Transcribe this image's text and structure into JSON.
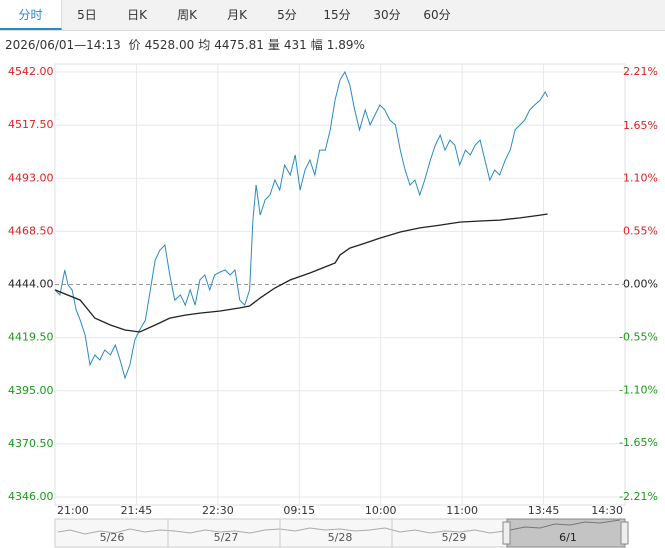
{
  "tabs": [
    "分时",
    "5日",
    "日K",
    "周K",
    "月K",
    "5分",
    "15分",
    "30分",
    "60分"
  ],
  "active_tab": 0,
  "info": {
    "datetime": "2026/06/01—14:13",
    "items": [
      {
        "label": "价",
        "value": "4528.00"
      },
      {
        "label": "均",
        "value": "4475.81"
      },
      {
        "label": "量",
        "value": "431"
      },
      {
        "label": "幅",
        "value": "1.89%"
      }
    ]
  },
  "navigator": {
    "labels": [
      "5/26",
      "5/27",
      "5/28",
      "5/29",
      "6/1"
    ],
    "selected": 4
  },
  "chart_data": {
    "type": "line",
    "xlim": [
      0,
      70
    ],
    "xticks": [
      {
        "value": 0,
        "label": "21:00"
      },
      {
        "value": 10,
        "label": "21:45"
      },
      {
        "value": 20,
        "label": "22:30"
      },
      {
        "value": 30,
        "label": "09:15"
      },
      {
        "value": 40,
        "label": "10:00"
      },
      {
        "value": 50,
        "label": "11:00"
      },
      {
        "value": 60,
        "label": "13:45"
      },
      {
        "value": 70,
        "label": "14:30"
      }
    ],
    "ylim": [
      4346,
      4542
    ],
    "yticks": [
      {
        "value": 4542,
        "label": "4542.00"
      },
      {
        "value": 4517.5,
        "label": "4517.50"
      },
      {
        "value": 4493,
        "label": "4493.00"
      },
      {
        "value": 4468.5,
        "label": "4468.50"
      },
      {
        "value": 4444,
        "label": "4444.00"
      },
      {
        "value": 4419.5,
        "label": "4419.50"
      },
      {
        "value": 4395,
        "label": "4395.00"
      },
      {
        "value": 4370.5,
        "label": "4370.50"
      },
      {
        "value": 4346,
        "label": "4346.00"
      }
    ],
    "y2lim": [
      -2.21,
      2.21
    ],
    "y2ticks": [
      {
        "value": 2.21,
        "label": "2.21%"
      },
      {
        "value": 1.65,
        "label": "1.65%"
      },
      {
        "value": 1.1,
        "label": "1.10%"
      },
      {
        "value": 0.55,
        "label": "0.55%"
      },
      {
        "value": 0,
        "label": "0.00%"
      },
      {
        "value": -0.55,
        "label": "-0.55%"
      },
      {
        "value": -1.1,
        "label": "-1.10%"
      },
      {
        "value": -1.65,
        "label": "-1.65%"
      },
      {
        "value": -2.21,
        "label": "-2.21%"
      }
    ],
    "base": 4444,
    "up_color": "#e02020",
    "down_color": "#1a9a1a",
    "flat_color": "#222222",
    "grid": true,
    "series": [
      {
        "name": "价",
        "color": "#2a8ac4",
        "x": [
          0,
          0.6,
          1.2,
          1.6,
          2.1,
          2.6,
          3.1,
          3.7,
          4.3,
          4.9,
          5.5,
          6.1,
          6.8,
          7.4,
          8.0,
          8.6,
          9.2,
          9.8,
          10.4,
          11.1,
          11.7,
          12.3,
          12.9,
          13.5,
          14.1,
          14.7,
          15.4,
          16.0,
          16.6,
          17.2,
          17.8,
          18.4,
          19.0,
          19.6,
          20.3,
          20.9,
          21.5,
          22.1,
          22.7,
          23.3,
          23.9,
          24.3,
          24.7,
          25.2,
          25.8,
          26.4,
          27.0,
          27.6,
          28.2,
          28.9,
          29.5,
          30.1,
          30.7,
          31.3,
          31.9,
          32.5,
          33.2,
          33.8,
          34.4,
          35.0,
          35.6,
          36.2,
          36.8,
          37.4,
          38.1,
          38.7,
          39.3,
          39.9,
          40.5,
          41.1,
          41.8,
          42.4,
          43.0,
          43.6,
          44.2,
          44.8,
          45.4,
          46.1,
          46.7,
          47.3,
          47.9,
          48.5,
          49.1,
          49.7,
          50.4,
          51.0,
          51.6,
          52.2,
          52.8,
          53.4,
          54.0,
          54.6,
          55.3,
          55.9,
          56.5,
          57.1,
          57.7,
          58.3,
          58.9,
          59.6,
          60.2,
          60.5
        ],
        "values": [
          4441.5,
          4439.2,
          4450.7,
          4443.8,
          4441.5,
          4432.2,
          4427.6,
          4420.7,
          4406.9,
          4411.5,
          4409.2,
          4413.8,
          4411.5,
          4416.1,
          4409.2,
          4400.9,
          4406.9,
          4418.4,
          4423,
          4427.6,
          4441.5,
          4455.3,
          4459.9,
          4462.2,
          4448.4,
          4436.8,
          4439.2,
          4434.5,
          4441.5,
          4434.5,
          4446.1,
          4448.4,
          4441.5,
          4448.4,
          4449.8,
          4450.7,
          4448.4,
          4450.7,
          4436.8,
          4434.5,
          4441.5,
          4473.7,
          4489.9,
          4476,
          4483,
          4485.3,
          4492.2,
          4487.6,
          4499.1,
          4494.5,
          4503.7,
          4487.6,
          4496.8,
          4501.4,
          4494.5,
          4506,
          4506,
          4515.3,
          4529.1,
          4538.3,
          4542,
          4536,
          4524.5,
          4515.3,
          4524.5,
          4517.6,
          4522.2,
          4526.8,
          4524.5,
          4519.9,
          4517.6,
          4506,
          4496.8,
          4489.9,
          4492.2,
          4485.3,
          4492.2,
          4501.4,
          4508.3,
          4512.9,
          4506,
          4510.6,
          4508.3,
          4499.1,
          4506,
          4503.7,
          4508.3,
          4510.6,
          4501.4,
          4492.2,
          4496.8,
          4494.5,
          4501.4,
          4506,
          4515.3,
          4517.6,
          4519.9,
          4524.5,
          4526.8,
          4529.1,
          4532.8,
          4530.5
        ]
      },
      {
        "name": "均",
        "color": "#222222",
        "x": [
          0,
          3.1,
          4.9,
          6.8,
          8.6,
          10.4,
          12.3,
          14.1,
          16.0,
          17.8,
          20.3,
          22.7,
          23.9,
          25.2,
          27.0,
          28.9,
          31.3,
          33.2,
          34.4,
          35.0,
          36.2,
          38.1,
          39.9,
          42.4,
          44.8,
          47.3,
          49.7,
          52.2,
          54.6,
          57.1,
          59.6,
          60.5
        ],
        "values": [
          4441.5,
          4436.8,
          4428.5,
          4425.3,
          4423,
          4422.1,
          4425.3,
          4428.5,
          4429.9,
          4430.8,
          4431.8,
          4433.2,
          4434.1,
          4437.8,
          4442.4,
          4446.1,
          4449.3,
          4452.1,
          4453.9,
          4457.6,
          4460.8,
          4463.1,
          4465.4,
          4468.2,
          4470.1,
          4471.4,
          4472.8,
          4473.3,
          4473.7,
          4474.7,
          4476,
          4476.5
        ]
      }
    ]
  }
}
